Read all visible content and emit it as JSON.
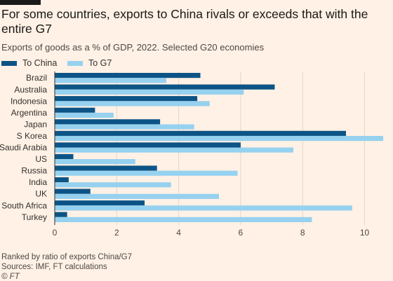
{
  "title": "For some countries, exports to China rivals or exceeds that with the entire G7",
  "subtitle": "Exports of goods as a % of GDP, 2022. Selected G20 economies",
  "footer": {
    "note": "Ranked by ratio of exports China/G7",
    "sources": "Sources: IMF, FT calculations",
    "credit": "© FT"
  },
  "colors": {
    "china": "#0d5486",
    "g7": "#96d1ef",
    "background": "#fff1e5"
  },
  "chart_data": {
    "type": "bar",
    "orientation": "horizontal",
    "categories": [
      "Brazil",
      "Australia",
      "Indonesia",
      "Argentina",
      "Japan",
      "S Korea",
      "Saudi Arabia",
      "US",
      "Russia",
      "India",
      "UK",
      "South Africa",
      "Turkey"
    ],
    "series": [
      {
        "name": "To China",
        "color": "#0d5486",
        "values": [
          4.7,
          7.1,
          4.6,
          1.3,
          3.4,
          9.4,
          6.0,
          0.6,
          3.3,
          0.45,
          1.15,
          2.9,
          0.4
        ]
      },
      {
        "name": "To G7",
        "color": "#96d1ef",
        "values": [
          3.6,
          6.1,
          5.0,
          1.9,
          4.5,
          10.6,
          7.7,
          2.6,
          5.9,
          3.75,
          5.3,
          9.6,
          8.3
        ]
      }
    ],
    "xlim": [
      0,
      10.6
    ],
    "xticks": [
      0,
      2,
      4,
      6,
      8,
      10
    ],
    "grid": true,
    "legend": "top-left"
  }
}
